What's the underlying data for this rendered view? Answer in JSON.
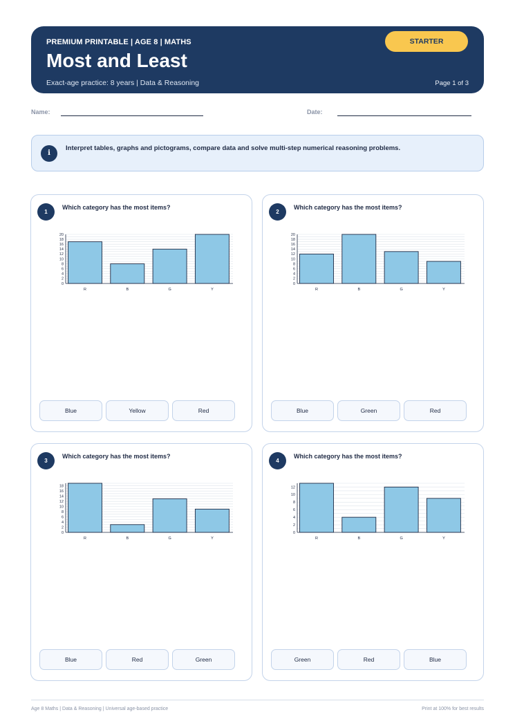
{
  "header": {
    "eyebrow": "PREMIUM PRINTABLE | AGE 8 | MATHS",
    "title": "Most and Least",
    "subtitle": "Exact-age practice: 8 years | Data & Reasoning",
    "badge": "STARTER",
    "page": "Page 1 of 3"
  },
  "fields": {
    "name_label": "Name:",
    "date_label": "Date:"
  },
  "info": {
    "icon_glyph": "i",
    "text": "Interpret tables, graphs and pictograms, compare data and solve multi-step numerical reasoning problems."
  },
  "colors": {
    "header_bg": "#1e3a62",
    "badge": "#f9c74f",
    "bar_fill": "#8ec8e6",
    "bar_stroke": "#1f2a44"
  },
  "questions": [
    {
      "number": "1",
      "prompt": "Which category has the most items?",
      "options": [
        "Blue",
        "Yellow",
        "Red"
      ]
    },
    {
      "number": "2",
      "prompt": "Which category has the most items?",
      "options": [
        "Blue",
        "Green",
        "Red"
      ]
    },
    {
      "number": "3",
      "prompt": "Which category has the most items?",
      "options": [
        "Blue",
        "Red",
        "Green"
      ]
    },
    {
      "number": "4",
      "prompt": "Which category has the most items?",
      "options": [
        "Green",
        "Red",
        "Blue"
      ]
    }
  ],
  "chart_data": [
    {
      "type": "bar",
      "categories": [
        "R",
        "B",
        "G",
        "Y"
      ],
      "values": [
        17,
        8,
        14,
        20
      ],
      "ylim": [
        0,
        20
      ],
      "yticks": [
        0,
        2,
        4,
        6,
        8,
        10,
        12,
        14,
        16,
        18,
        20
      ],
      "grid": true
    },
    {
      "type": "bar",
      "categories": [
        "R",
        "B",
        "G",
        "Y"
      ],
      "values": [
        12,
        20,
        13,
        9
      ],
      "ylim": [
        0,
        20
      ],
      "yticks": [
        0,
        2,
        4,
        6,
        8,
        10,
        12,
        14,
        16,
        18,
        20
      ],
      "grid": true
    },
    {
      "type": "bar",
      "categories": [
        "R",
        "B",
        "G",
        "Y"
      ],
      "values": [
        19,
        3,
        13,
        9
      ],
      "ylim": [
        0,
        19
      ],
      "yticks": [
        0,
        2,
        4,
        6,
        8,
        10,
        12,
        14,
        16,
        18
      ],
      "grid": true
    },
    {
      "type": "bar",
      "categories": [
        "R",
        "B",
        "G",
        "Y"
      ],
      "values": [
        13,
        4,
        12,
        9
      ],
      "ylim": [
        0,
        13
      ],
      "yticks": [
        0,
        2,
        4,
        6,
        8,
        10,
        12
      ],
      "grid": true
    }
  ],
  "footer": {
    "left": "Age 8 Maths | Data & Reasoning | Universal age-based practice",
    "right": "Print at 100% for best results"
  }
}
